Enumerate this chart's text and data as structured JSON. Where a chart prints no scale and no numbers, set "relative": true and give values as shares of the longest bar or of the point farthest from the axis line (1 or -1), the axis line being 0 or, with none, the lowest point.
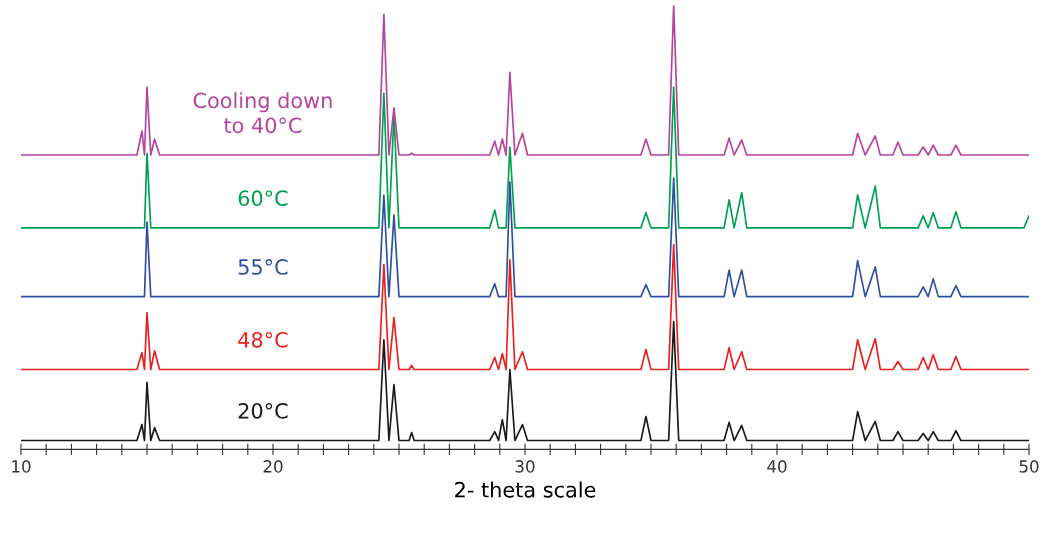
{
  "chart_data": {
    "type": "line",
    "relative": true,
    "xlabel": "2- theta scale",
    "xlim": [
      10,
      50
    ],
    "xticks": [
      10,
      {
        "value": 11,
        "label": null
      },
      {
        "value": 12,
        "label": null
      },
      {
        "value": 13,
        "label": null
      },
      {
        "value": 14,
        "label": null
      },
      {
        "value": 15,
        "label": null
      },
      {
        "value": 16,
        "label": null
      },
      {
        "value": 17,
        "label": null
      },
      {
        "value": 18,
        "label": null
      },
      {
        "value": 19,
        "label": null
      },
      20,
      {
        "value": 21,
        "label": null
      },
      {
        "value": 22,
        "label": null
      },
      {
        "value": 23,
        "label": null
      },
      {
        "value": 24,
        "label": null
      },
      {
        "value": 25,
        "label": null
      },
      {
        "value": 26,
        "label": null
      },
      {
        "value": 27,
        "label": null
      },
      {
        "value": 28,
        "label": null
      },
      {
        "value": 29,
        "label": null
      },
      30,
      {
        "value": 31,
        "label": null
      },
      {
        "value": 32,
        "label": null
      },
      {
        "value": 33,
        "label": null
      },
      {
        "value": 34,
        "label": null
      },
      {
        "value": 35,
        "label": null
      },
      {
        "value": 36,
        "label": null
      },
      {
        "value": 37,
        "label": null
      },
      {
        "value": 38,
        "label": null
      },
      {
        "value": 39,
        "label": null
      },
      40,
      {
        "value": 41,
        "label": null
      },
      {
        "value": 42,
        "label": null
      },
      {
        "value": 43,
        "label": null
      },
      {
        "value": 44,
        "label": null
      },
      {
        "value": 45,
        "label": null
      },
      {
        "value": 46,
        "label": null
      },
      {
        "value": 47,
        "label": null
      },
      {
        "value": 48,
        "label": null
      },
      {
        "value": 49,
        "label": null
      },
      50
    ],
    "x": [
      10,
      14.6,
      14.8,
      14.9,
      15.0,
      15.15,
      15.3,
      15.5,
      24.2,
      24.4,
      24.6,
      24.8,
      25.0,
      25.4,
      25.5,
      25.6,
      28.6,
      28.8,
      28.95,
      29.1,
      29.25,
      29.4,
      29.6,
      29.9,
      30.1,
      34.6,
      34.8,
      35.0,
      35.7,
      35.9,
      36.1,
      37.9,
      38.1,
      38.3,
      38.6,
      38.8,
      43.0,
      43.2,
      43.5,
      43.9,
      44.1,
      44.6,
      44.8,
      45.0,
      45.6,
      45.8,
      46.0,
      46.2,
      46.4,
      46.9,
      47.1,
      47.3,
      49.8,
      50
    ],
    "grid": false,
    "legend": false,
    "marker": "none",
    "line_style": "solid",
    "series": [
      {
        "name": "20°C",
        "color": "#1a1a1a",
        "values": [
          0.02,
          0.02,
          0.056,
          0.02,
          0.151,
          0.02,
          0.049,
          0.02,
          0.02,
          0.247,
          0.02,
          0.146,
          0.02,
          0.02,
          0.038,
          0.02,
          0.02,
          0.04,
          0.02,
          0.067,
          0.02,
          0.18,
          0.02,
          0.056,
          0.02,
          0.02,
          0.074,
          0.02,
          0.02,
          0.288,
          0.02,
          0.02,
          0.061,
          0.02,
          0.054,
          0.02,
          0.02,
          0.085,
          0.02,
          0.063,
          0.02,
          0.02,
          0.04,
          0.02,
          0.02,
          0.036,
          0.02,
          0.04,
          0.02,
          0.02,
          0.042,
          0.02,
          0.02,
          0.02
        ]
      },
      {
        "name": "48°C",
        "color": "#e8201e",
        "values": [
          0.18,
          0.18,
          0.218,
          0.18,
          0.308,
          0.18,
          0.222,
          0.18,
          0.18,
          0.416,
          0.18,
          0.297,
          0.18,
          0.18,
          0.189,
          0.18,
          0.18,
          0.207,
          0.18,
          0.216,
          0.18,
          0.427,
          0.18,
          0.22,
          0.18,
          0.18,
          0.225,
          0.18,
          0.18,
          0.461,
          0.18,
          0.18,
          0.229,
          0.18,
          0.22,
          0.18,
          0.18,
          0.247,
          0.18,
          0.249,
          0.18,
          0.18,
          0.198,
          0.18,
          0.18,
          0.207,
          0.18,
          0.213,
          0.18,
          0.18,
          0.209,
          0.18,
          0.18,
          0.18
        ]
      },
      {
        "name": "55°C",
        "color": "#2e4fa0",
        "values": [
          0.344,
          0.344,
          0.344,
          0.344,
          0.512,
          0.344,
          0.344,
          0.344,
          0.344,
          0.573,
          0.344,
          0.528,
          0.344,
          0.344,
          0.344,
          0.344,
          0.344,
          0.373,
          0.344,
          0.344,
          0.344,
          0.602,
          0.344,
          0.344,
          0.344,
          0.344,
          0.371,
          0.344,
          0.344,
          0.611,
          0.344,
          0.344,
          0.404,
          0.344,
          0.404,
          0.344,
          0.344,
          0.425,
          0.344,
          0.411,
          0.344,
          0.344,
          0.344,
          0.344,
          0.344,
          0.366,
          0.344,
          0.384,
          0.344,
          0.344,
          0.369,
          0.344,
          0.344,
          0.344
        ]
      },
      {
        "name": "60°C",
        "color": "#00a050",
        "values": [
          0.499,
          0.499,
          0.499,
          0.499,
          0.667,
          0.499,
          0.499,
          0.499,
          0.499,
          0.802,
          0.499,
          0.753,
          0.499,
          0.499,
          0.499,
          0.499,
          0.499,
          0.539,
          0.499,
          0.499,
          0.499,
          0.681,
          0.499,
          0.499,
          0.499,
          0.499,
          0.533,
          0.499,
          0.499,
          0.816,
          0.499,
          0.499,
          0.562,
          0.499,
          0.578,
          0.499,
          0.499,
          0.573,
          0.499,
          0.593,
          0.499,
          0.499,
          0.499,
          0.499,
          0.499,
          0.526,
          0.499,
          0.533,
          0.499,
          0.499,
          0.535,
          0.499,
          0.499,
          0.526
        ]
      },
      {
        "name": "Cooling down\nto 40°C",
        "color": "#b5449f",
        "values": [
          0.663,
          0.663,
          0.717,
          0.663,
          0.816,
          0.663,
          0.699,
          0.663,
          0.663,
          0.98,
          0.663,
          0.769,
          0.663,
          0.663,
          0.667,
          0.663,
          0.663,
          0.694,
          0.663,
          0.699,
          0.663,
          0.849,
          0.663,
          0.712,
          0.663,
          0.663,
          0.699,
          0.663,
          0.663,
          1.0,
          0.663,
          0.663,
          0.701,
          0.663,
          0.697,
          0.663,
          0.663,
          0.712,
          0.663,
          0.706,
          0.663,
          0.663,
          0.692,
          0.663,
          0.663,
          0.681,
          0.663,
          0.685,
          0.663,
          0.663,
          0.685,
          0.663,
          0.663,
          0.663
        ]
      }
    ]
  }
}
